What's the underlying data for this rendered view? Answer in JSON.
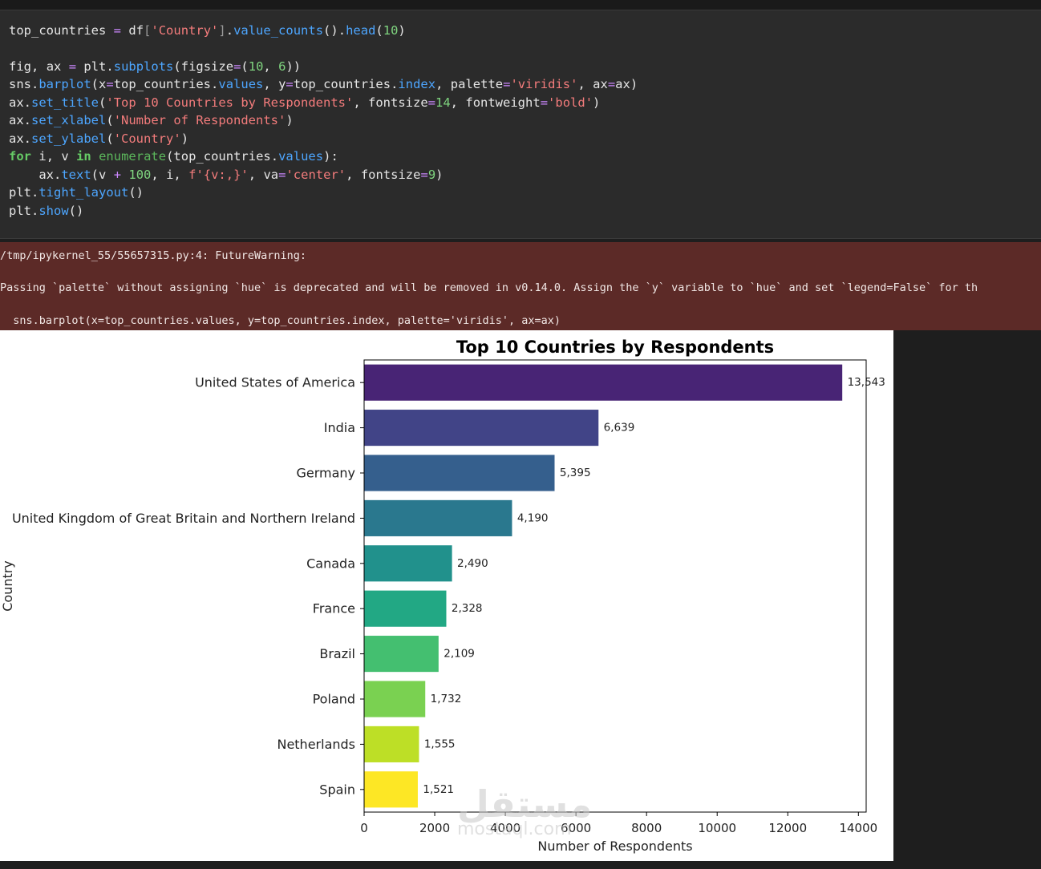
{
  "code": {
    "lines": [
      "top_countries = df['Country'].value_counts().head(10)",
      "",
      "fig, ax = plt.subplots(figsize=(10, 6))",
      "sns.barplot(x=top_countries.values, y=top_countries.index, palette='viridis', ax=ax)",
      "ax.set_title('Top 10 Countries by Respondents', fontsize=14, fontweight='bold')",
      "ax.set_xlabel('Number of Respondents')",
      "ax.set_ylabel('Country')",
      "for i, v in enumerate(top_countries.values):",
      "    ax.text(v + 100, i, f'{v:,}', va='center', fontsize=9)",
      "plt.tight_layout()",
      "plt.show()"
    ]
  },
  "warning": {
    "path_line": "/tmp/ipykernel_55/55657315.py:4: FutureWarning:",
    "message_line": "Passing `palette` without assigning `hue` is deprecated and will be removed in v0.14.0. Assign the `y` variable to `hue` and set `legend=False` for th",
    "code_line": "  sns.barplot(x=top_countries.values, y=top_countries.index, palette='viridis', ax=ax)"
  },
  "watermark": {
    "arabic": "مستقل",
    "latin": "mostaql.com"
  },
  "chart_data": {
    "type": "bar",
    "orientation": "horizontal",
    "title": "Top 10 Countries by Respondents",
    "xlabel": "Number of Respondents",
    "ylabel": "Country",
    "categories": [
      "United States of America",
      "India",
      "Germany",
      "United Kingdom of Great Britain and Northern Ireland",
      "Canada",
      "France",
      "Brazil",
      "Poland",
      "Netherlands",
      "Spain"
    ],
    "values": [
      13543,
      6639,
      5395,
      4190,
      2490,
      2328,
      2109,
      1732,
      1555,
      1521
    ],
    "value_labels": [
      "13,543",
      "6,639",
      "5,395",
      "4,190",
      "2,490",
      "2,328",
      "2,109",
      "1,732",
      "1,555",
      "1,521"
    ],
    "colors": [
      "#482475",
      "#414487",
      "#355f8d",
      "#2a788e",
      "#21918c",
      "#22a884",
      "#44bf70",
      "#7ad151",
      "#bddf26",
      "#fde725"
    ],
    "xticks": [
      0,
      2000,
      4000,
      6000,
      8000,
      10000,
      12000,
      14000
    ],
    "xlim": [
      0,
      14220
    ],
    "grid": false,
    "legend": "none"
  }
}
